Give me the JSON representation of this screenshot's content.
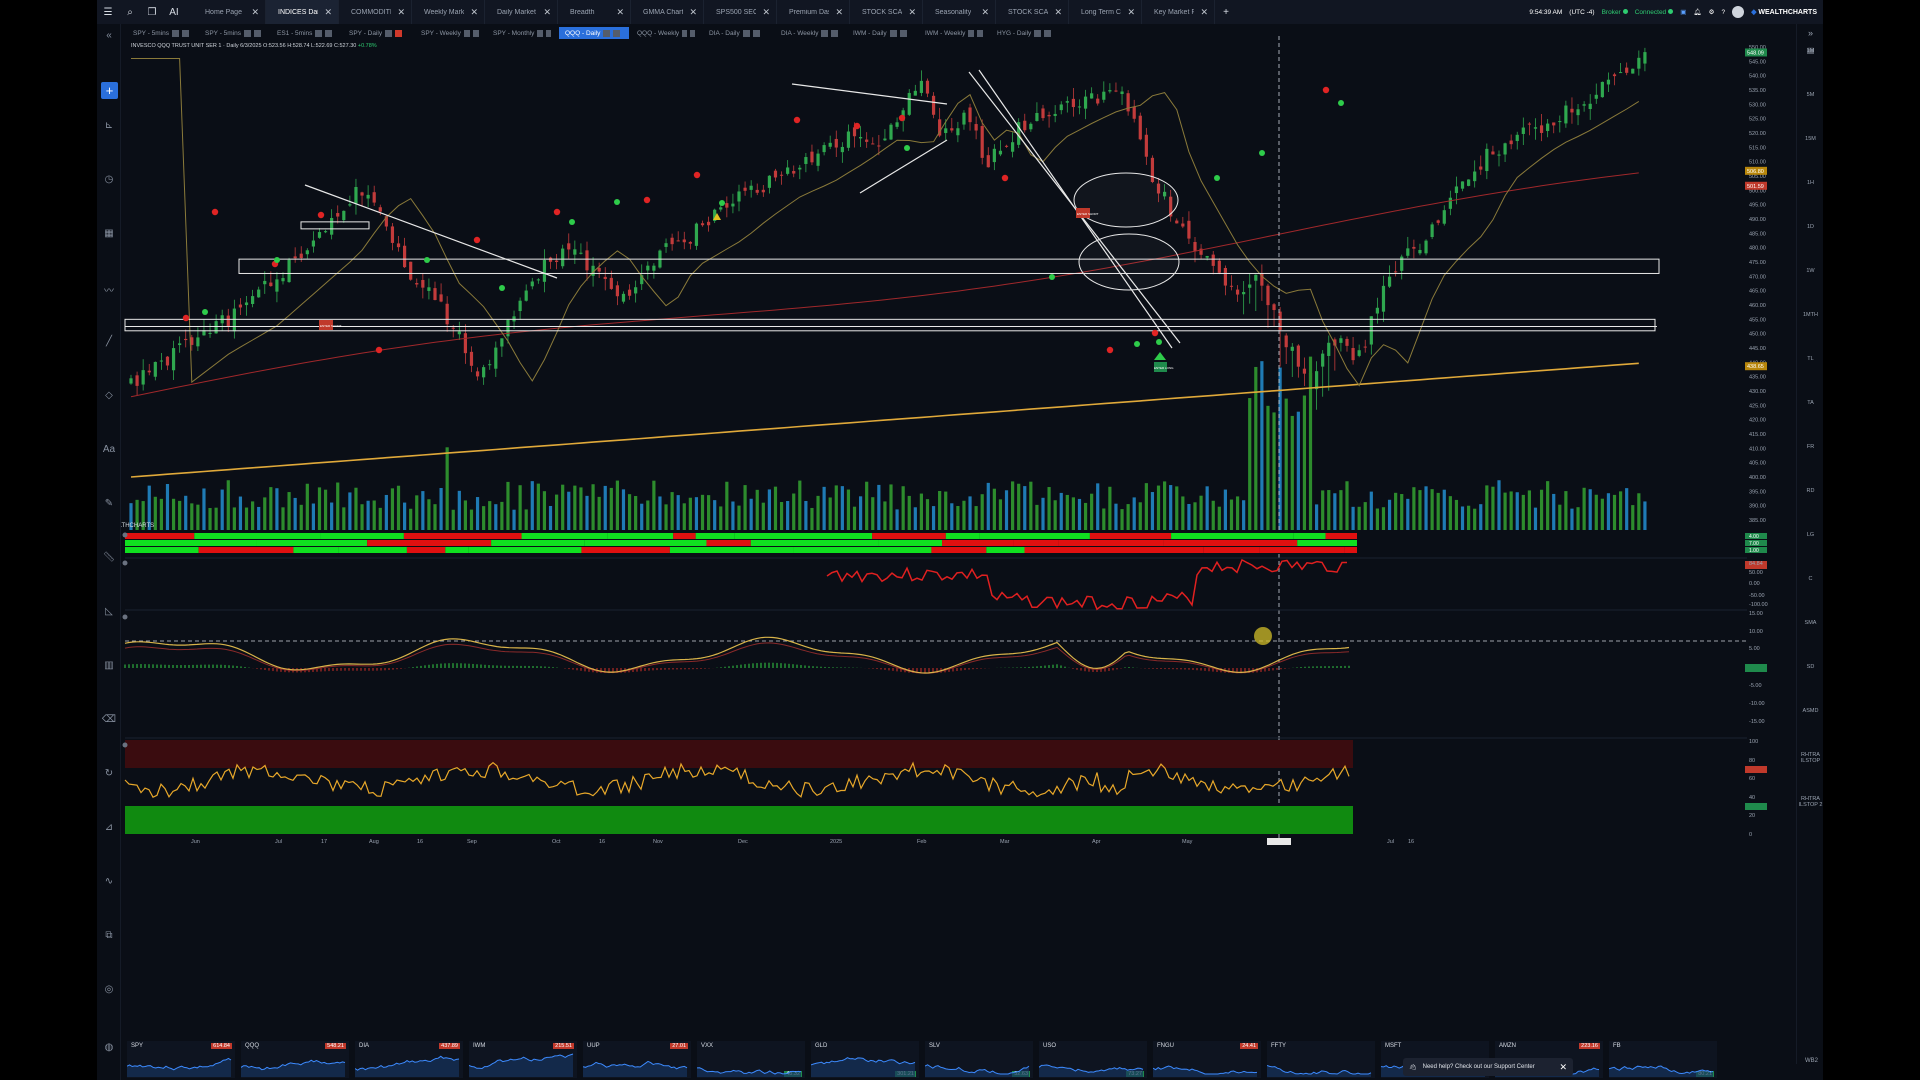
{
  "topbar": {
    "tabs": [
      {
        "label": "Home Page",
        "active": false
      },
      {
        "label": "INDICES Daily",
        "active": true
      },
      {
        "label": "COMMODITIES",
        "active": false
      },
      {
        "label": "Weekly Market Simple Ti...",
        "active": false
      },
      {
        "label": "Daily Market Simple Tims...",
        "active": false
      },
      {
        "label": "Breadth",
        "active": false
      },
      {
        "label": "GMMA Charts",
        "active": false
      },
      {
        "label": "SPS500 SECTORS HOURLY",
        "active": false
      },
      {
        "label": "Premium Dash",
        "active": false
      },
      {
        "label": "STOCK SCANNERS",
        "active": false
      },
      {
        "label": "Seasonality",
        "active": false
      },
      {
        "label": "STOCK SCANNERS Copy",
        "active": false
      },
      {
        "label": "Long Term Charts",
        "active": false
      },
      {
        "label": "Key Market Ratio C",
        "active": false
      }
    ],
    "clock": "9:54:39 AM",
    "timezone": "(UTC -4)",
    "broker_label": "Broker",
    "connected_label": "Connected",
    "brand": "WEALTHCHARTS",
    "ai_label": "AI",
    "add_tab": "+"
  },
  "subtabs": [
    {
      "label": "SPY - 5mins",
      "active": false
    },
    {
      "label": "SPY - 5mins",
      "active": false
    },
    {
      "label": "ES1 - 5mins",
      "active": false
    },
    {
      "label": "SPY - Daily",
      "active": false
    },
    {
      "label": "SPY - Weekly",
      "active": false
    },
    {
      "label": "SPY - Monthly",
      "active": false
    },
    {
      "label": "QQQ - Daily",
      "active": true
    },
    {
      "label": "QQQ - Weekly",
      "active": false
    },
    {
      "label": "DIA - Daily",
      "active": false
    },
    {
      "label": "DIA - Weekly",
      "active": false
    },
    {
      "label": "IWM - Daily",
      "active": false
    },
    {
      "label": "IWM - Weekly",
      "active": false
    },
    {
      "label": "HYG - Daily",
      "active": false
    }
  ],
  "symbol": {
    "name": "INVESCO QQQ TRUST UNIT SER 1 · Daily 6/3/2025",
    "ohlc": "O:523.56 H:528.74 L:522.69 C:527.30",
    "change": "+0.78%"
  },
  "price_axis": [
    "550.00",
    "545.00",
    "540.00",
    "535.00",
    "530.00",
    "525.00",
    "520.00",
    "515.00",
    "510.00",
    "505.00",
    "500.00",
    "495.00",
    "490.00",
    "485.00",
    "480.00",
    "475.00",
    "470.00",
    "465.00",
    "460.00",
    "455.00",
    "450.00",
    "445.00",
    "440.00",
    "435.00",
    "430.00",
    "425.00",
    "420.00",
    "415.00",
    "410.00",
    "405.00",
    "400.00",
    "395.00",
    "390.00",
    "385.00"
  ],
  "price_tags": [
    {
      "value": "548.09",
      "color": "#1f8a4c"
    },
    {
      "value": "506.80",
      "color": "#b8860b"
    },
    {
      "value": "501.59",
      "color": "#c0392b"
    },
    {
      "value": "438.65",
      "color": "#b8860b"
    }
  ],
  "panel_axes": {
    "rsi_tags": [
      "4.00",
      "7.00",
      "1.00"
    ],
    "osc1": [
      "84.84",
      "50.00",
      "0.00",
      "-50.00",
      "-100.00"
    ],
    "macd": [
      "15.00",
      "10.00",
      "5.00",
      "0.285",
      "-5.00",
      "-10.00",
      "-15.00"
    ],
    "stoch": [
      "100",
      "80",
      "70.00",
      "60",
      "40",
      "30.00",
      "20",
      "0"
    ]
  },
  "date_axis": [
    "03",
    "Jun",
    "Jul",
    "17",
    "Aug",
    "16",
    "Sep",
    "Oct",
    "16",
    "Nov",
    "Dec",
    "2025",
    "Feb",
    "Mar",
    "Apr",
    "May",
    "Jul",
    "16"
  ],
  "right_timeframes": [
    "1M",
    "5M",
    "15M",
    "1H",
    "1D",
    "1W",
    "1MTH",
    "TL",
    "TA",
    "FR",
    "RD",
    "LG",
    "C",
    "SMA",
    "SD",
    "ASMD",
    "RHTRA ILSTOP",
    "RHTRA ILSTOP 2"
  ],
  "watermark": "WEALTHCHARTS",
  "signals": {
    "enter_short": "ENTER SHORT",
    "enter_long": "ENTER LONG"
  },
  "tickers": [
    {
      "name": "SPY",
      "last": "614.84",
      "chg": ""
    },
    {
      "name": "QQQ",
      "last": "548.21",
      "chg": ""
    },
    {
      "name": "DIA",
      "last": "437.89",
      "chg": ""
    },
    {
      "name": "IWM",
      "last": "215.51",
      "chg": ""
    },
    {
      "name": "UUP",
      "last": "27.01",
      "chg": ""
    },
    {
      "name": "VXX",
      "last": "",
      "chg": "48.32"
    },
    {
      "name": "GLD",
      "last": "",
      "chg": "301.21"
    },
    {
      "name": "SLV",
      "last": "",
      "chg": "32.63"
    },
    {
      "name": "USO",
      "last": "",
      "chg": "73.27"
    },
    {
      "name": "FNGU",
      "last": "24.41",
      "chg": ""
    },
    {
      "name": "FFTY",
      "last": "",
      "chg": ""
    },
    {
      "name": "MSFT",
      "last": "",
      "chg": ""
    },
    {
      "name": "AMZN",
      "last": "223.16",
      "chg": ""
    },
    {
      "name": "FB",
      "last": "",
      "chg": "80.21"
    }
  ],
  "support": {
    "text": "Need help? Check out our Support Center"
  },
  "corner_label": "WB2"
}
